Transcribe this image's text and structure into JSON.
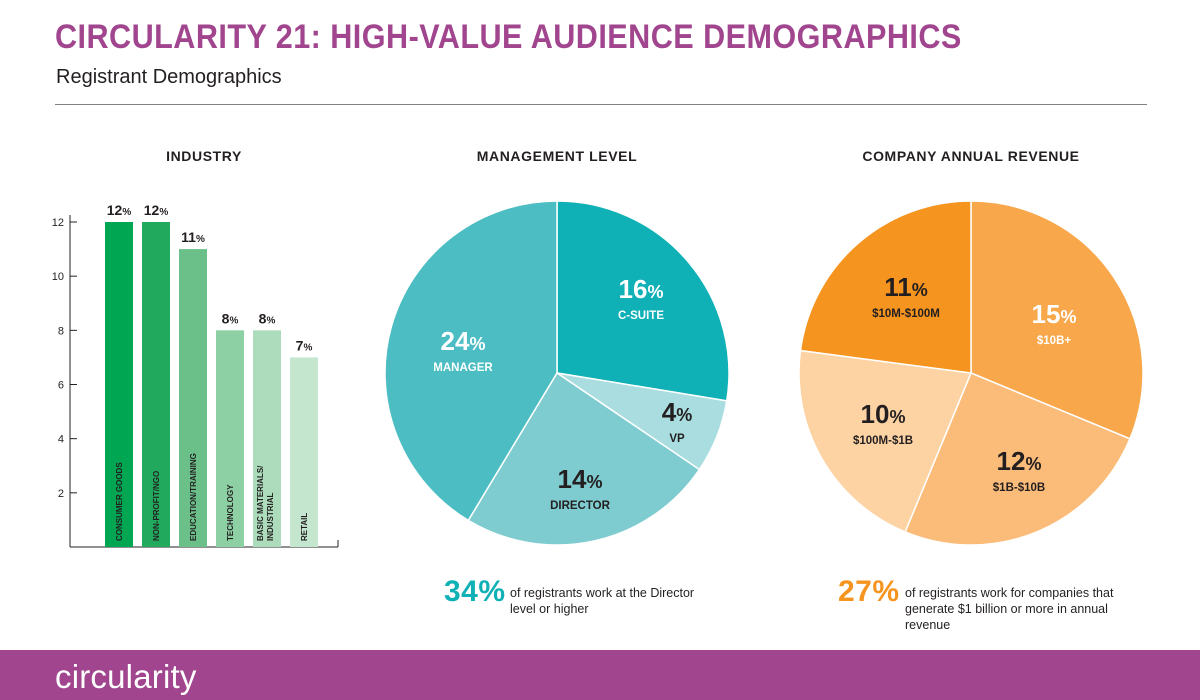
{
  "header": {
    "title": "CIRCULARITY 21: HIGH-VALUE AUDIENCE DEMOGRAPHICS",
    "subtitle": "Registrant Demographics",
    "title_color": "#a0458e"
  },
  "chart_data": [
    {
      "type": "bar",
      "title": "INDUSTRY",
      "categories": [
        "CONSUMER GOODS",
        "NON-PROFIT/NGO",
        "EDUCATION/TRAINING",
        "TECHNOLOGY",
        "BASIC MATERIALS/ INDUSTRIAL",
        "RETAIL"
      ],
      "values": [
        12,
        12,
        11,
        8,
        8,
        7
      ],
      "data_labels": [
        "12%",
        "12%",
        "11%",
        "8%",
        "8%",
        "7%"
      ],
      "y_ticks": [
        2,
        4,
        6,
        8,
        10,
        12
      ],
      "ylim": [
        0,
        12
      ],
      "colors": [
        "#00a651",
        "#21aa5e",
        "#6bc08a",
        "#8dd0a3",
        "#acdcbb",
        "#c4e6cf"
      ],
      "grid": false
    },
    {
      "type": "pie",
      "title": "MANAGEMENT LEVEL",
      "slices": [
        {
          "label": "C-SUITE",
          "value": 16,
          "display": "16%",
          "color": "#0fb0b6",
          "text_color": "#ffffff"
        },
        {
          "label": "VP",
          "value": 4,
          "display": "4%",
          "color": "#a9dde0",
          "text_color": "#231f20"
        },
        {
          "label": "DIRECTOR",
          "value": 14,
          "display": "14%",
          "color": "#7ecbd0",
          "text_color": "#231f20"
        },
        {
          "label": "MANAGER",
          "value": 24,
          "display": "24%",
          "color": "#4dbdc4",
          "text_color": "#ffffff"
        }
      ],
      "callout": {
        "value": "34%",
        "text": "of registrants work at the Director level or higher",
        "color": "#0fb0b6"
      }
    },
    {
      "type": "pie",
      "title": "COMPANY ANNUAL REVENUE",
      "slices": [
        {
          "label": "$10B+",
          "value": 15,
          "display": "15%",
          "color": "#f8a74b",
          "text_color": "#ffffff"
        },
        {
          "label": "$1B-$10B",
          "value": 12,
          "display": "12%",
          "color": "#fbbb79",
          "text_color": "#231f20"
        },
        {
          "label": "$100M-$1B",
          "value": 10,
          "display": "10%",
          "color": "#fdd3a3",
          "text_color": "#231f20"
        },
        {
          "label": "$10M-$100M",
          "value": 11,
          "display": "11%",
          "color": "#f5941f",
          "text_color": "#231f20"
        }
      ],
      "callout": {
        "value": "27%",
        "text": "of registrants work for companies that generate $1 billion or more in annual revenue",
        "color": "#f5941f"
      }
    }
  ],
  "footer": {
    "logo_text": "circularity",
    "background": "#a0458e"
  }
}
